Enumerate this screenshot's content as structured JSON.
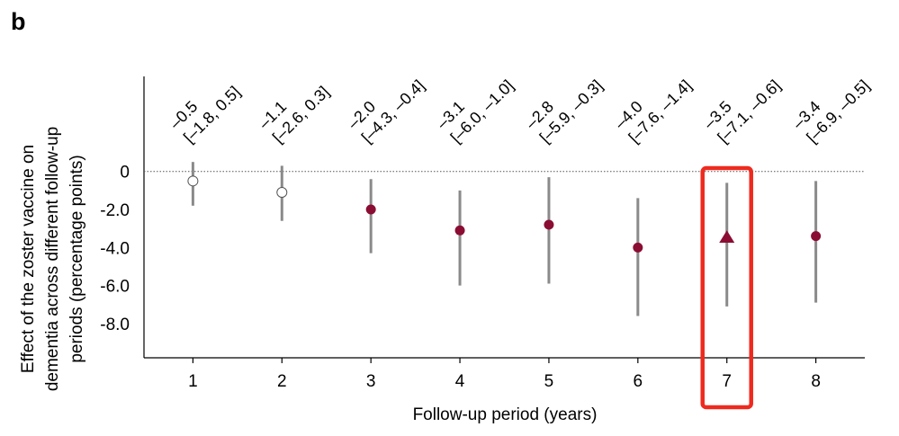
{
  "panel_label": "b",
  "chart_data": {
    "type": "scatter",
    "subtype": "point-estimate-with-confidence-interval",
    "xlabel": "Follow-up period (years)",
    "ylabel_lines": [
      "Effect of the zoster vaccine on",
      "dementia across different follow-up",
      "periods (percentage points)"
    ],
    "x": [
      1,
      2,
      3,
      4,
      5,
      6,
      7,
      8
    ],
    "x_tick_labels": [
      "1",
      "2",
      "3",
      "4",
      "5",
      "6",
      "7",
      "8"
    ],
    "y_tick_values": [
      0,
      -2,
      -4,
      -6,
      -8
    ],
    "y_tick_labels": [
      "0",
      "-2.0",
      "-4.0",
      "-6.0",
      "-8.0"
    ],
    "ylim": [
      -9.8,
      5
    ],
    "xlim": [
      0.45,
      8.55
    ],
    "estimates": [
      -0.5,
      -1.1,
      -2.0,
      -3.1,
      -2.8,
      -4.0,
      -3.5,
      -3.4
    ],
    "ci_lower": [
      -1.8,
      -2.6,
      -4.3,
      -6.0,
      -5.9,
      -7.6,
      -7.1,
      -6.9
    ],
    "ci_upper": [
      0.5,
      0.3,
      -0.4,
      -1.0,
      -0.3,
      -1.4,
      -0.6,
      -0.5
    ],
    "estimate_labels": [
      "–0.5",
      "–1.1",
      "–2.0",
      "–3.1",
      "–2.8",
      "–4.0",
      "–3.5",
      "–3.4"
    ],
    "ci_labels": [
      "[–1.8, 0.5]",
      "[–2.6, 0.3]",
      "[–4.3, –0.4]",
      "[–6.0, –1.0]",
      "[–5.9, –0.3]",
      "[–7.6, –1.4]",
      "[–7.1, –0.6]",
      "[–6.9, –0.5]"
    ],
    "marker_style": [
      "open-circle",
      "open-circle",
      "filled-circle",
      "filled-circle",
      "filled-circle",
      "filled-circle",
      "filled-triangle",
      "filled-circle"
    ],
    "reference_line_y": 0,
    "highlighted_x": 7,
    "colors": {
      "marker_fill": "#8b0d33",
      "open_marker_fill": "#ffffff",
      "open_marker_stroke": "#555555",
      "ci_line": "#8a8a8a",
      "axis": "#000000",
      "reference_line": "#555555",
      "highlight_box": "#ee2a1f"
    }
  }
}
